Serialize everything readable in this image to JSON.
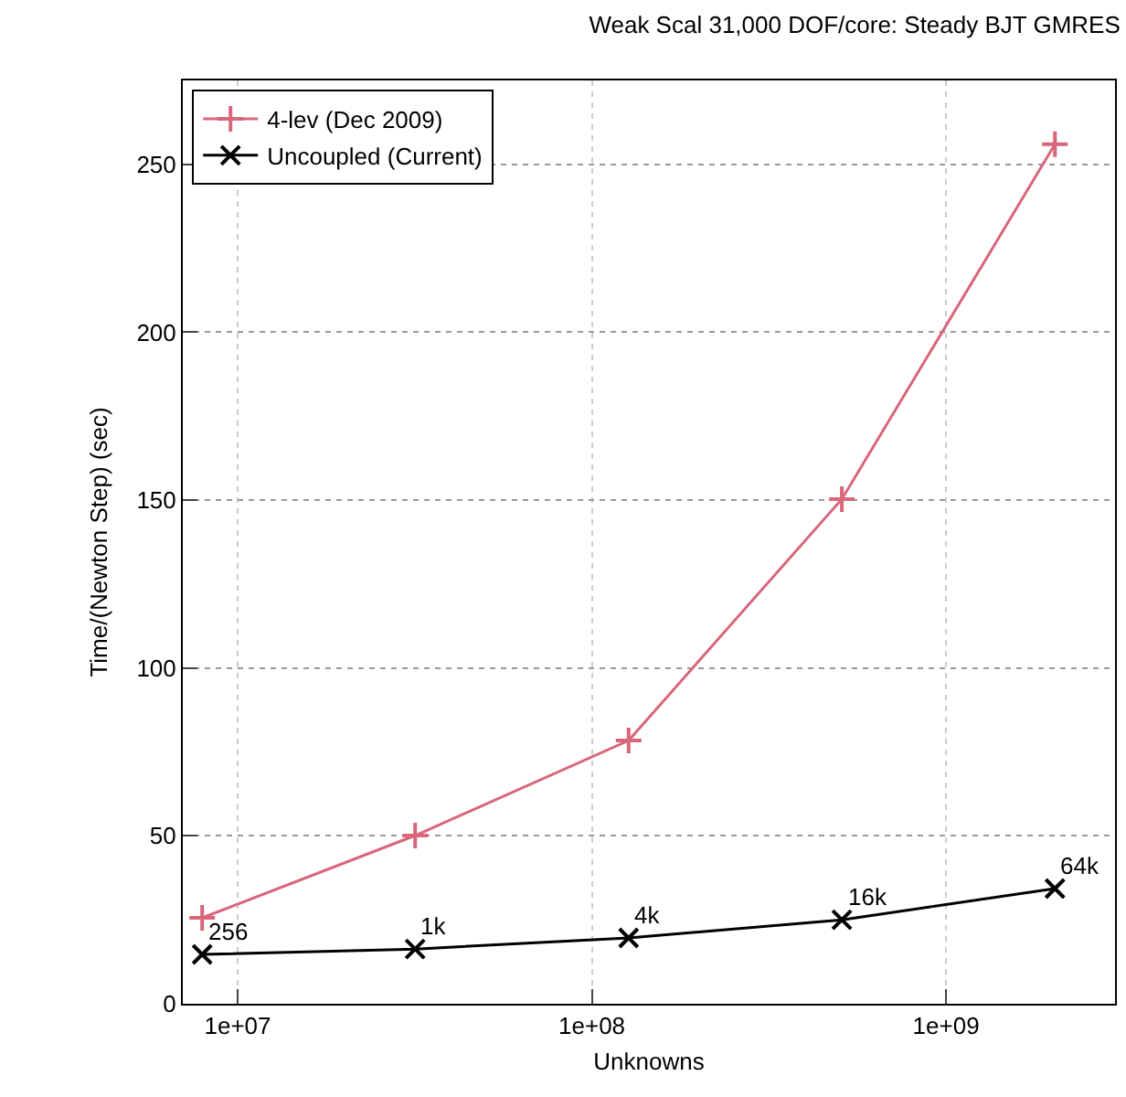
{
  "chart_data": {
    "type": "line",
    "title": "Weak Scal 31,000 DOF/core: Steady BJT GMRES",
    "xlabel": "Unknowns",
    "ylabel": "Time/(Newton Step) (sec)",
    "x": [
      7940000.0,
      31700000.0,
      127000000.0,
      508000000.0,
      2030000000.0
    ],
    "series": [
      {
        "name": "4-lev (Dec 2009)",
        "color": "#d9667a",
        "marker": "cross",
        "values": [
          25.6,
          50.1,
          78.4,
          150.3,
          256
        ]
      },
      {
        "name": "Uncoupled (Current)",
        "color": "#000000",
        "marker": "x",
        "values": [
          14.7,
          16.3,
          19.6,
          25,
          34.3
        ]
      }
    ],
    "annotations": [
      {
        "text": "256",
        "x": 7940000.0,
        "y": 14.7
      },
      {
        "text": "1k",
        "x": 31700000.0,
        "y": 16.3
      },
      {
        "text": "4k",
        "x": 127000000.0,
        "y": 19.6
      },
      {
        "text": "16k",
        "x": 508000000.0,
        "y": 25
      },
      {
        "text": "64k",
        "x": 2030000000.0,
        "y": 34.3
      }
    ],
    "log": "x",
    "xlim": [
      7000000.0,
      3000000000.0
    ],
    "xticks": [
      {
        "value": 10000000.0,
        "label": "1e+07"
      },
      {
        "value": 100000000.0,
        "label": "1e+08"
      },
      {
        "value": 1000000000.0,
        "label": "1e+09"
      }
    ],
    "ylim": [
      0,
      275
    ],
    "yticks": [
      0,
      50,
      100,
      150,
      200,
      250
    ],
    "grid": true,
    "legend": "top left",
    "line_style": "solid"
  }
}
